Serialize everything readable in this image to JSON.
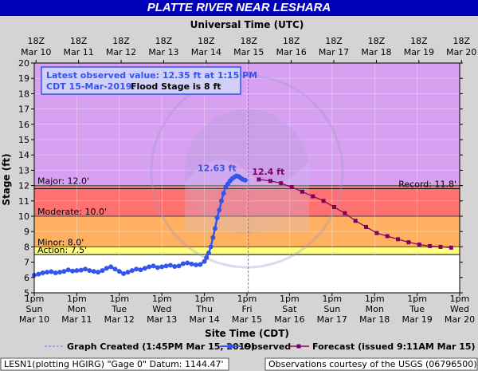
{
  "title": "PLATTE RIVER NEAR LESHARA",
  "colors": {
    "title_bg": "#0000b8",
    "plot_bg": "#d8a0f0",
    "major_band": "#ff7070",
    "moderate_band": "#ffb060",
    "minor_band": "#ffff80",
    "action_band": "#ffffff",
    "observed": "#3355ee",
    "forecast": "#800060",
    "graph_created_line": "#7070ff"
  },
  "chart_data": {
    "type": "line",
    "title": "PLATTE RIVER NEAR LESHARA",
    "xlabel_top": "Universal Time (UTC)",
    "xlabel_bottom": "Site Time (CDT)",
    "ylabel": "Stage (ft)",
    "ylim": [
      5,
      20
    ],
    "yticks": [
      5,
      6,
      7,
      8,
      9,
      10,
      11,
      12,
      13,
      14,
      15,
      16,
      17,
      18,
      19,
      20
    ],
    "x_unit": "days since Mar 10 1pm CDT",
    "xlim": [
      0,
      10
    ],
    "top_ticks": [
      {
        "l1": "18Z",
        "l2": "Mar 10"
      },
      {
        "l1": "18Z",
        "l2": "Mar 11"
      },
      {
        "l1": "18Z",
        "l2": "Mar 12"
      },
      {
        "l1": "18Z",
        "l2": "Mar 13"
      },
      {
        "l1": "18Z",
        "l2": "Mar 14"
      },
      {
        "l1": "18Z",
        "l2": "Mar 15"
      },
      {
        "l1": "18Z",
        "l2": "Mar 16"
      },
      {
        "l1": "18Z",
        "l2": "Mar 17"
      },
      {
        "l1": "18Z",
        "l2": "Mar 18"
      },
      {
        "l1": "18Z",
        "l2": "Mar 19"
      },
      {
        "l1": "18Z",
        "l2": "Mar 20"
      }
    ],
    "bottom_ticks": [
      {
        "l1": "1pm",
        "l2": "Sun",
        "l3": "Mar 10"
      },
      {
        "l1": "1pm",
        "l2": "Mon",
        "l3": "Mar 11"
      },
      {
        "l1": "1pm",
        "l2": "Tue",
        "l3": "Mar 12"
      },
      {
        "l1": "1pm",
        "l2": "Wed",
        "l3": "Mar 13"
      },
      {
        "l1": "1pm",
        "l2": "Thu",
        "l3": "Mar 14"
      },
      {
        "l1": "1pm",
        "l2": "Fri",
        "l3": "Mar 15"
      },
      {
        "l1": "1pm",
        "l2": "Sat",
        "l3": "Mar 16"
      },
      {
        "l1": "1pm",
        "l2": "Sun",
        "l3": "Mar 17"
      },
      {
        "l1": "1pm",
        "l2": "Mon",
        "l3": "Mar 18"
      },
      {
        "l1": "1pm",
        "l2": "Tue",
        "l3": "Mar 19"
      },
      {
        "l1": "1pm",
        "l2": "Wed",
        "l3": "Mar 20"
      }
    ],
    "flood_categories": [
      {
        "name": "Major",
        "label": "Major: 12.0'",
        "from": 12.0,
        "to": 20,
        "color": "#d8a0f0"
      },
      {
        "name": "Moderate",
        "label": "Moderate: 10.0'",
        "from": 10.0,
        "to": 12.0,
        "color": "#ff7070"
      },
      {
        "name": "Minor",
        "label": "Minor: 8.0'",
        "from": 8.0,
        "to": 10.0,
        "color": "#ffb060"
      },
      {
        "name": "Action",
        "label": "Action: 7.5'",
        "from": 7.5,
        "to": 8.0,
        "color": "#ffff80"
      }
    ],
    "record": {
      "label": "Record: 11.8'",
      "value": 11.8
    },
    "graph_created_x": 5.03,
    "annotations": [
      {
        "text": "12.63 ft",
        "x": 4.75,
        "y": 12.63,
        "color": "#3355ee"
      },
      {
        "text": "12.4 ft",
        "x": 5.5,
        "y": 12.4,
        "color": "#800060"
      }
    ],
    "series": [
      {
        "name": "Observed",
        "color": "#3355ee",
        "x": [
          0.0,
          0.1,
          0.2,
          0.3,
          0.4,
          0.5,
          0.6,
          0.7,
          0.8,
          0.9,
          1.0,
          1.1,
          1.2,
          1.3,
          1.4,
          1.5,
          1.6,
          1.7,
          1.8,
          1.9,
          2.0,
          2.1,
          2.2,
          2.3,
          2.4,
          2.5,
          2.6,
          2.7,
          2.8,
          2.9,
          3.0,
          3.1,
          3.2,
          3.3,
          3.4,
          3.5,
          3.6,
          3.7,
          3.8,
          3.9,
          4.0,
          4.05,
          4.1,
          4.15,
          4.2,
          4.25,
          4.3,
          4.35,
          4.4,
          4.45,
          4.5,
          4.55,
          4.6,
          4.65,
          4.7,
          4.75,
          4.8,
          4.85,
          4.9,
          4.96
        ],
        "y": [
          6.15,
          6.22,
          6.3,
          6.35,
          6.38,
          6.3,
          6.35,
          6.4,
          6.5,
          6.42,
          6.45,
          6.48,
          6.55,
          6.45,
          6.4,
          6.35,
          6.45,
          6.6,
          6.7,
          6.55,
          6.4,
          6.25,
          6.35,
          6.45,
          6.55,
          6.5,
          6.6,
          6.7,
          6.75,
          6.65,
          6.7,
          6.75,
          6.8,
          6.72,
          6.75,
          6.9,
          6.95,
          6.88,
          6.82,
          6.85,
          7.05,
          7.3,
          7.6,
          8.0,
          8.6,
          9.2,
          9.9,
          10.4,
          11.0,
          11.5,
          11.9,
          12.1,
          12.3,
          12.45,
          12.55,
          12.63,
          12.6,
          12.5,
          12.4,
          12.35
        ]
      },
      {
        "name": "Forecast",
        "color": "#800060",
        "x": [
          5.28,
          5.55,
          5.8,
          6.05,
          6.3,
          6.55,
          6.8,
          7.05,
          7.3,
          7.55,
          7.8,
          8.05,
          8.3,
          8.55,
          8.8,
          9.05,
          9.3,
          9.55,
          9.8
        ],
        "y": [
          12.4,
          12.3,
          12.15,
          11.9,
          11.6,
          11.3,
          11.0,
          10.6,
          10.2,
          9.7,
          9.3,
          8.9,
          8.7,
          8.5,
          8.3,
          8.15,
          8.05,
          8.0,
          7.95
        ]
      }
    ]
  },
  "info_box": {
    "line1": "Latest observed value: 12.35 ft at 1:15 PM",
    "line2a": "CDT 15-Mar-2019.",
    "line2b": "Flood Stage is 8 ft"
  },
  "legend": {
    "graph_created": "Graph Created (1:45PM Mar 15, 2019)",
    "observed": "Observed",
    "forecast": "Forecast (issued 9:11AM Mar 15)"
  },
  "footer": {
    "left": "LESN1(plotting HGIRG) \"Gage 0\" Datum: 1144.47'",
    "right": "Observations courtesy of the USGS (06796500)"
  }
}
